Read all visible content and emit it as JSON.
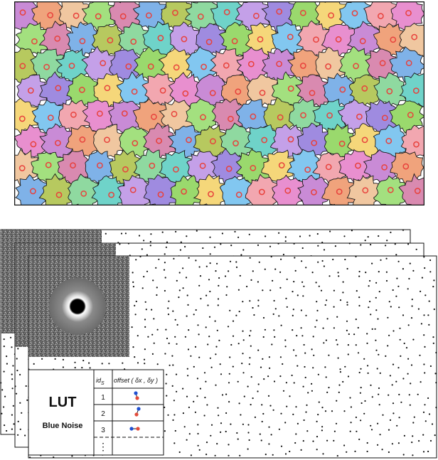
{
  "mosaic": {
    "cells_x": 16,
    "cells_y": 8,
    "seed_color": "#e8413c",
    "border_color": "#1a1a1a",
    "palette": [
      "#c98bd6",
      "#8fd9a0",
      "#f2a7b0",
      "#7fb2e8",
      "#f5d77a",
      "#a3e07f",
      "#9f8be0",
      "#f0a37c",
      "#6fd3c9",
      "#e88fcf",
      "#b7c95f",
      "#82c7f0",
      "#d98ab0",
      "#9ad96d",
      "#f0c7a0",
      "#c4a0e8"
    ]
  },
  "stack": {
    "layers": 3,
    "fft_panel": {
      "name": "fourier-spectrum"
    },
    "dot_color": "#111111"
  },
  "lut": {
    "title": "LUT",
    "subtitle": "Blue Noise",
    "header_id": "id",
    "header_id_sub": "S",
    "header_offset": "offset ( δx , δy )",
    "rows": [
      {
        "id": "1"
      },
      {
        "id": "2"
      },
      {
        "id": "3"
      }
    ],
    "ellipsis": "⋮",
    "colors": {
      "dot_a": "#1f4fd1",
      "dot_b": "#e24a3a"
    }
  }
}
